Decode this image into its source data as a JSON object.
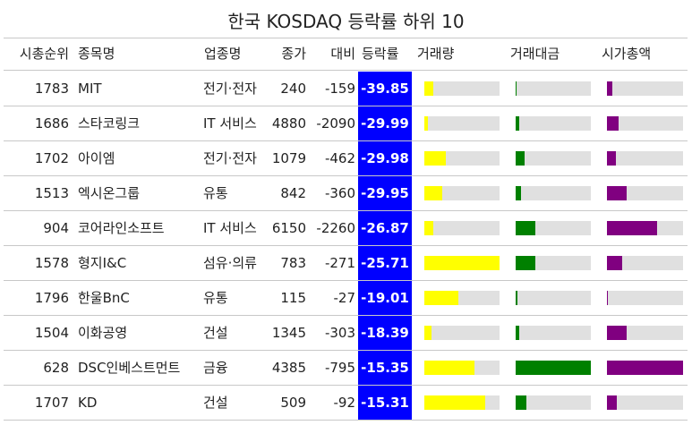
{
  "title": "한국 KOSDAQ 등락률 하위 10",
  "columns": {
    "rank": "시총순위",
    "name": "종목명",
    "sector": "업종명",
    "price": "종가",
    "change": "대비",
    "rate": "등락률",
    "volume": "거래량",
    "amount": "거래대금",
    "cap": "시가총액"
  },
  "colors": {
    "rate_bg": "#0000ff",
    "volume": "#ffff00",
    "amount": "#008000",
    "cap": "#800080",
    "track": "#e0e0e0"
  },
  "chart_data": {
    "type": "table",
    "bar_scale": "fraction of column maximum",
    "rows": [
      {
        "rank": "1783",
        "name": "MIT",
        "sector": "전기·전자",
        "price": "240",
        "change": "-159",
        "rate": "-39.85",
        "volume": 0.12,
        "amount": 0.01,
        "cap": 0.07
      },
      {
        "rank": "1686",
        "name": "스타코링크",
        "sector": "IT 서비스",
        "price": "4880",
        "change": "-2090",
        "rate": "-29.99",
        "volume": 0.05,
        "amount": 0.05,
        "cap": 0.15
      },
      {
        "rank": "1702",
        "name": "아이엠",
        "sector": "전기·전자",
        "price": "1079",
        "change": "-462",
        "rate": "-29.98",
        "volume": 0.29,
        "amount": 0.12,
        "cap": 0.12
      },
      {
        "rank": "1513",
        "name": "엑시온그룹",
        "sector": "유통",
        "price": "842",
        "change": "-360",
        "rate": "-29.95",
        "volume": 0.24,
        "amount": 0.07,
        "cap": 0.26
      },
      {
        "rank": "904",
        "name": "코어라인소프트",
        "sector": "IT 서비스",
        "price": "6150",
        "change": "-2260",
        "rate": "-26.87",
        "volume": 0.12,
        "amount": 0.26,
        "cap": 0.66
      },
      {
        "rank": "1578",
        "name": "형지I&C",
        "sector": "섬유·의류",
        "price": "783",
        "change": "-271",
        "rate": "-25.71",
        "volume": 1.0,
        "amount": 0.26,
        "cap": 0.2
      },
      {
        "rank": "1796",
        "name": "한울BnC",
        "sector": "유통",
        "price": "115",
        "change": "-27",
        "rate": "-19.01",
        "volume": 0.45,
        "amount": 0.02,
        "cap": 0.01
      },
      {
        "rank": "1504",
        "name": "이화공영",
        "sector": "건설",
        "price": "1345",
        "change": "-303",
        "rate": "-18.39",
        "volume": 0.1,
        "amount": 0.05,
        "cap": 0.26
      },
      {
        "rank": "628",
        "name": "DSC인베스트먼트",
        "sector": "금융",
        "price": "4385",
        "change": "-795",
        "rate": "-15.35",
        "volume": 0.67,
        "amount": 1.0,
        "cap": 1.0
      },
      {
        "rank": "1707",
        "name": "KD",
        "sector": "건설",
        "price": "509",
        "change": "-92",
        "rate": "-15.31",
        "volume": 0.81,
        "amount": 0.14,
        "cap": 0.13
      }
    ]
  }
}
